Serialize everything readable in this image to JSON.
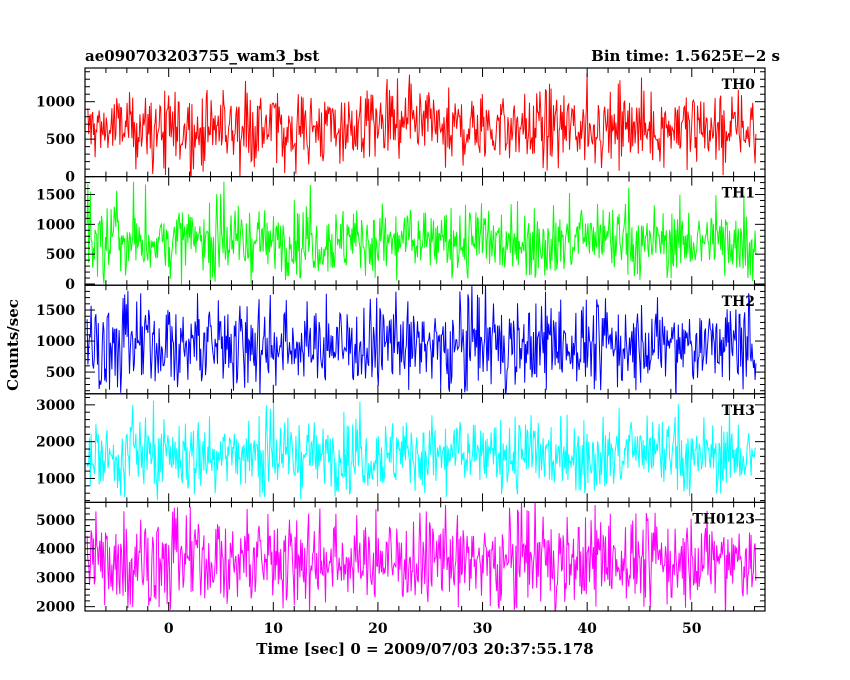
{
  "title_left": "ae090703203755_wam3_bst",
  "title_right": "Bin time: 1.5625E−2 s",
  "ylabel": "Counts/sec",
  "xlabel": "Time [sec] 0 = 2009/07/03 20:37:55.178",
  "chart_data": {
    "type": "line",
    "x_ticks": [
      0,
      10,
      20,
      30,
      40,
      50
    ],
    "xlim": [
      -8,
      57
    ],
    "data_x_range": [
      -7.8,
      56.2
    ],
    "panels": [
      {
        "name": "TH0",
        "color": "#ff0000",
        "ylim": [
          0,
          1450
        ],
        "y_ticks": [
          0,
          500,
          1000
        ],
        "mean": 650,
        "low": 150,
        "high": 1070,
        "max": 1400
      },
      {
        "name": "TH1",
        "color": "#00ff00",
        "ylim": [
          -20,
          1800
        ],
        "y_ticks": [
          0,
          500,
          1000,
          1500
        ],
        "mean": 720,
        "low": 160,
        "high": 1250,
        "max": 1750
      },
      {
        "name": "TH2",
        "color": "#0000ff",
        "ylim": [
          150,
          1900
        ],
        "y_ticks": [
          500,
          1000,
          1500
        ],
        "mean": 940,
        "low": 300,
        "high": 1600,
        "max": 1850
      },
      {
        "name": "TH3",
        "color": "#00ffff",
        "ylim": [
          350,
          3300
        ],
        "y_ticks": [
          1000,
          2000,
          3000
        ],
        "mean": 1650,
        "low": 700,
        "high": 2550,
        "max": 3200
      },
      {
        "name": "TH0123",
        "color": "#ff00ff",
        "ylim": [
          1850,
          5600
        ],
        "y_ticks": [
          2000,
          3000,
          4000,
          5000
        ],
        "mean": 3600,
        "low": 2200,
        "high": 5100,
        "max": 5500
      }
    ]
  }
}
